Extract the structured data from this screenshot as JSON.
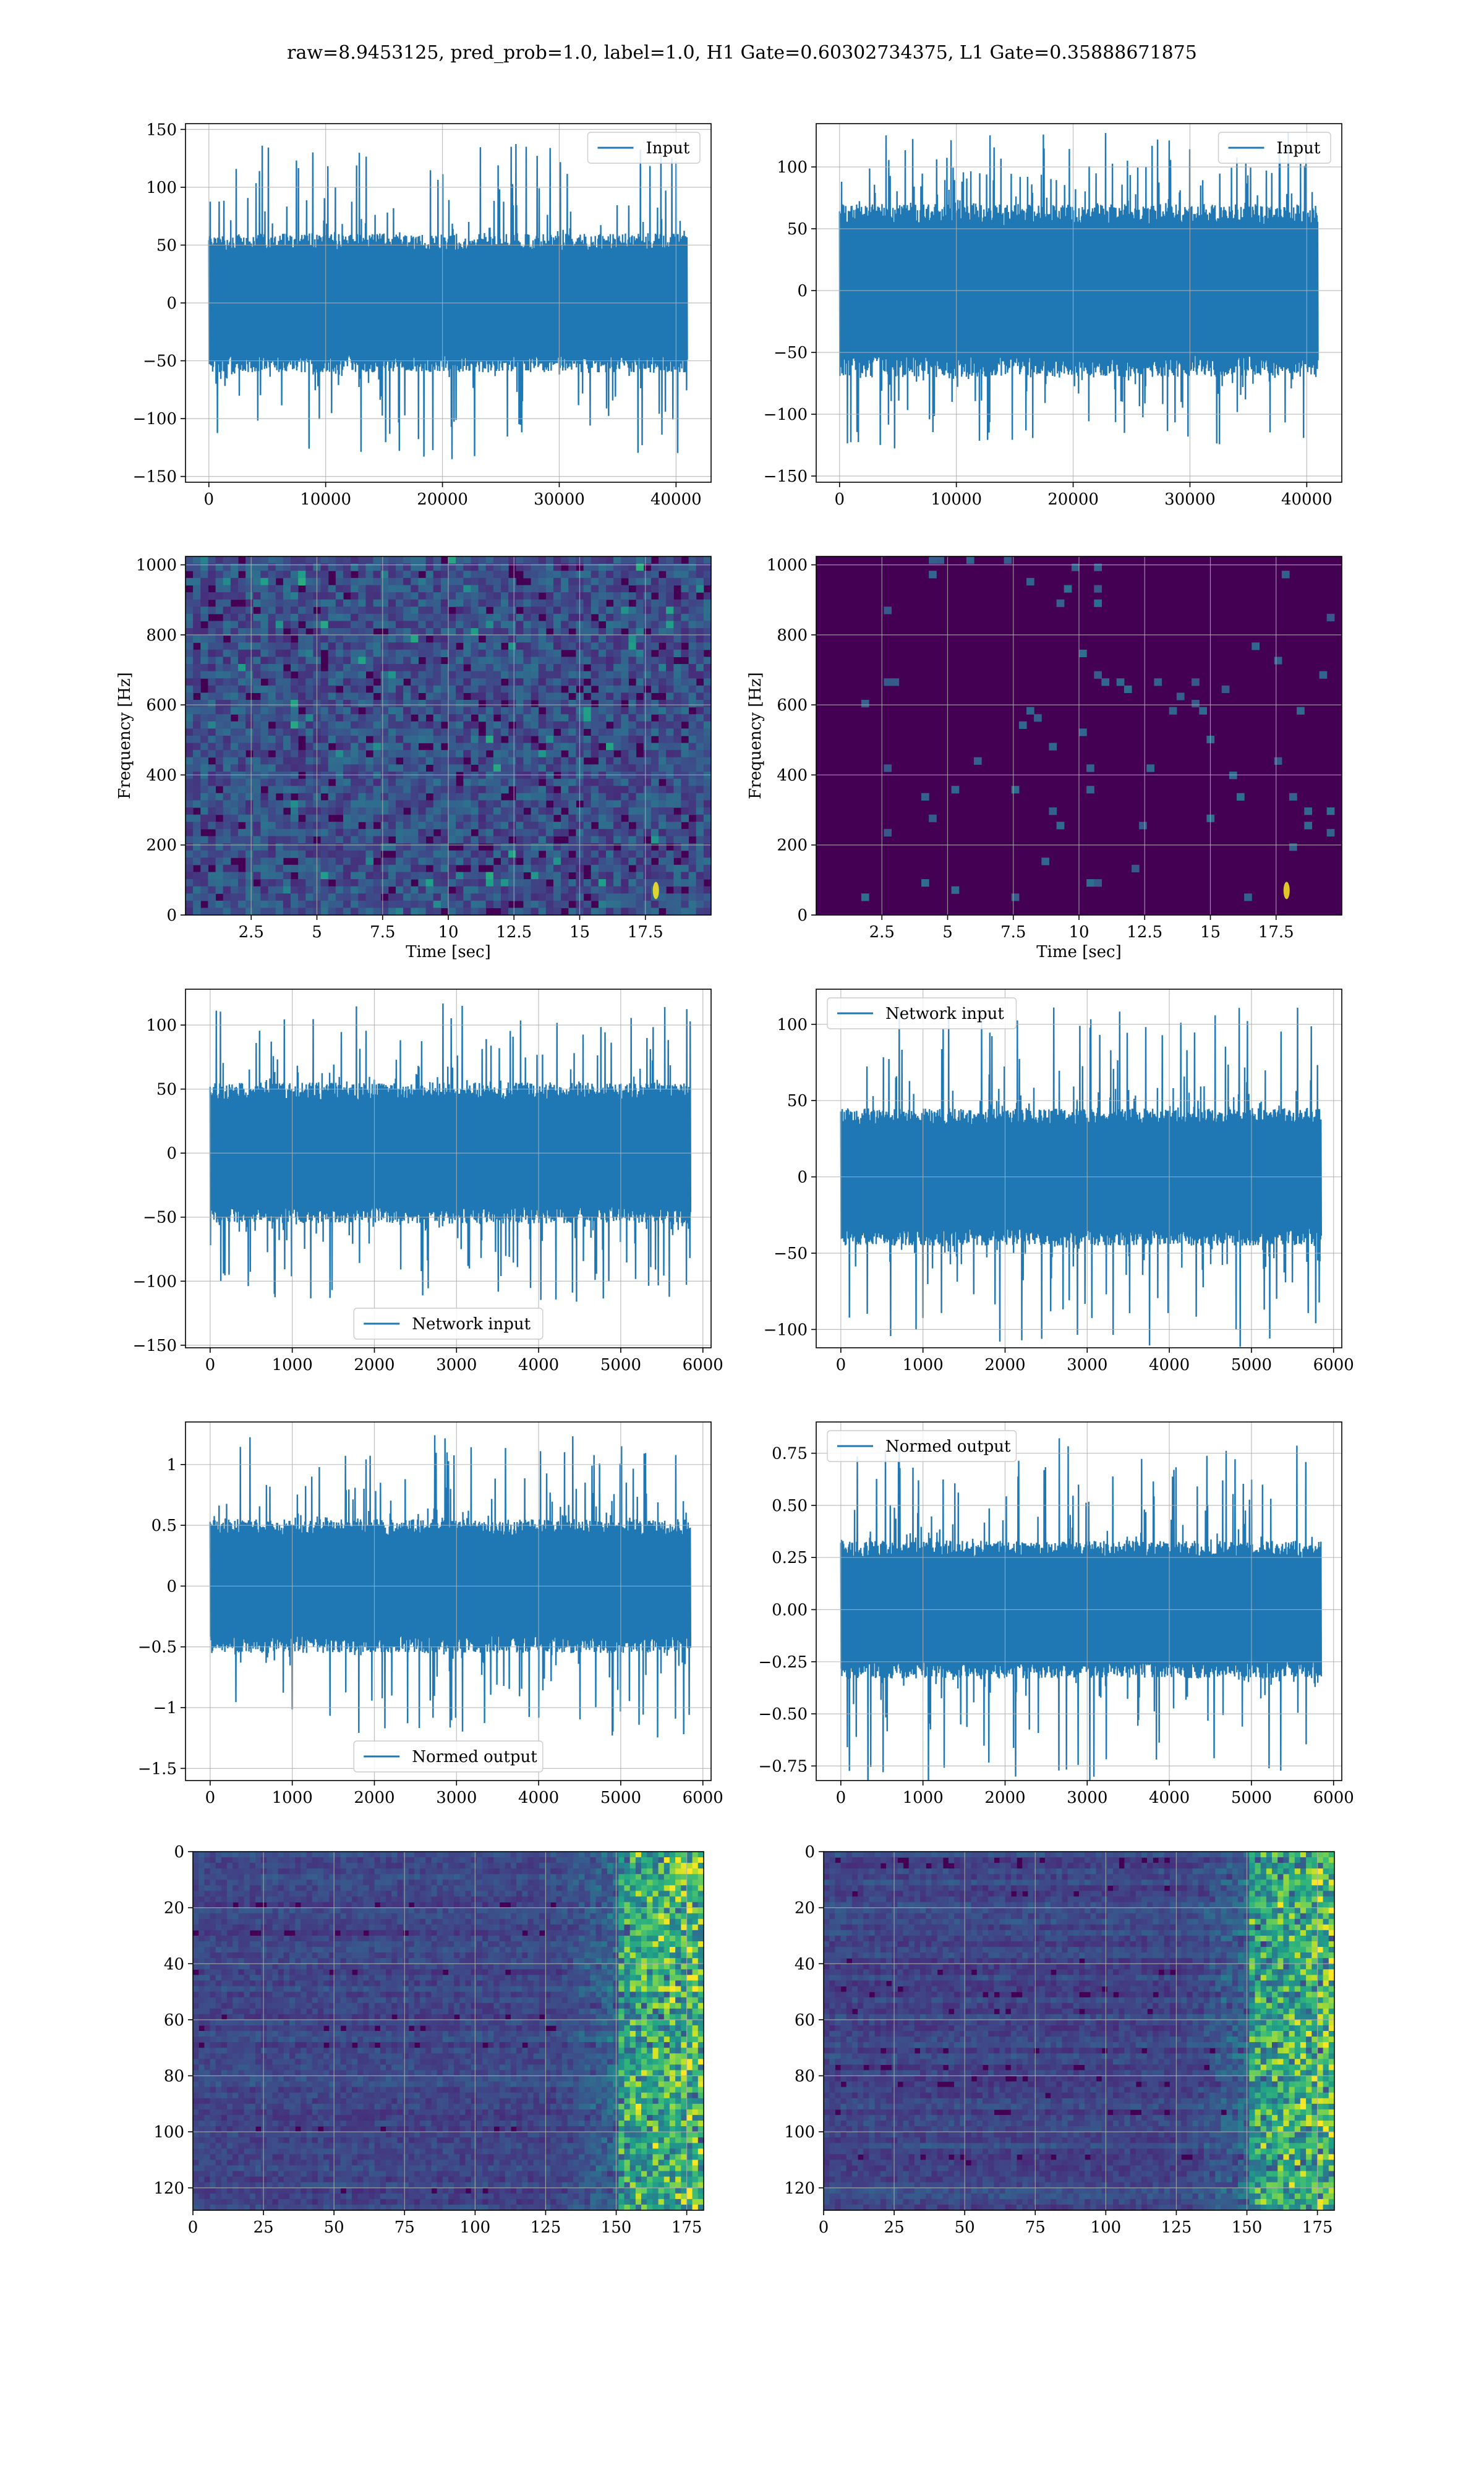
{
  "figure": {
    "title": "raw=8.9453125, pred_prob=1.0, label=1.0, H1 Gate=0.60302734375, L1 Gate=0.35888671875"
  },
  "colors": {
    "line": "#1f77b4",
    "viridis_dark": "#440154",
    "viridis_bright": "#fde725",
    "grid": "#b0b0b0"
  },
  "chart_data": [
    {
      "id": "h1-input",
      "type": "line",
      "series": [
        {
          "name": "Input"
        }
      ],
      "legend": "upper right",
      "xlim": [
        -2000,
        43000
      ],
      "ylim": [
        -155,
        155
      ],
      "xticks": [
        0,
        10000,
        20000,
        30000,
        40000
      ],
      "yticks": [
        -150,
        -100,
        -50,
        0,
        50,
        100,
        150
      ],
      "x_range": [
        0,
        40960
      ],
      "band": 60,
      "spike": 138
    },
    {
      "id": "l1-input",
      "type": "line",
      "series": [
        {
          "name": "Input"
        }
      ],
      "legend": "upper right",
      "xlim": [
        -2000,
        43000
      ],
      "ylim": [
        -155,
        135
      ],
      "xticks": [
        0,
        10000,
        20000,
        30000,
        40000
      ],
      "yticks": [
        -150,
        -100,
        -50,
        0,
        50,
        100
      ],
      "x_range": [
        0,
        40960
      ],
      "band": 70,
      "spike": 128
    },
    {
      "id": "h1-spectrogram",
      "type": "heatmap",
      "xlim": [
        0,
        20
      ],
      "ylim": [
        0,
        1024
      ],
      "xticks": [
        2.5,
        5.0,
        7.5,
        10.0,
        12.5,
        15.0,
        17.5
      ],
      "yticks": [
        0,
        200,
        400,
        600,
        800,
        1000
      ],
      "xlabel": "Time [sec]",
      "ylabel": "Frequency [Hz]",
      "intensity": 0.55
    },
    {
      "id": "l1-spectrogram",
      "type": "heatmap",
      "xlim": [
        0,
        20
      ],
      "ylim": [
        0,
        1024
      ],
      "xticks": [
        2.5,
        5.0,
        7.5,
        10.0,
        12.5,
        15.0,
        17.5
      ],
      "yticks": [
        0,
        200,
        400,
        600,
        800,
        1000
      ],
      "xlabel": "Time [sec]",
      "ylabel": "Frequency [Hz]",
      "intensity": 0.2
    },
    {
      "id": "h1-network-input",
      "type": "line",
      "series": [
        {
          "name": "Network input"
        }
      ],
      "legend": "lower center",
      "xlim": [
        -300,
        6100
      ],
      "ylim": [
        -152,
        128
      ],
      "xticks": [
        0,
        1000,
        2000,
        3000,
        4000,
        5000,
        6000
      ],
      "yticks": [
        -150,
        -100,
        -50,
        0,
        50,
        100
      ],
      "x_range": [
        0,
        5850
      ],
      "band": 55,
      "spike": 118
    },
    {
      "id": "l1-network-input",
      "type": "line",
      "series": [
        {
          "name": "Network input"
        }
      ],
      "legend": "upper left",
      "xlim": [
        -300,
        6100
      ],
      "ylim": [
        -112,
        123
      ],
      "xticks": [
        0,
        1000,
        2000,
        3000,
        4000,
        5000,
        6000
      ],
      "yticks": [
        -100,
        -50,
        0,
        50,
        100
      ],
      "x_range": [
        0,
        5850
      ],
      "band": 45,
      "spike": 112
    },
    {
      "id": "h1-normed-output",
      "type": "line",
      "series": [
        {
          "name": "Normed output"
        }
      ],
      "legend": "lower center",
      "xlim": [
        -300,
        6100
      ],
      "ylim": [
        -1.6,
        1.35
      ],
      "xticks": [
        0,
        1000,
        2000,
        3000,
        4000,
        5000,
        6000
      ],
      "yticks": [
        -1.5,
        -1.0,
        -0.5,
        0.0,
        0.5,
        1.0
      ],
      "x_range": [
        0,
        5850
      ],
      "band": 0.55,
      "spike": 1.25
    },
    {
      "id": "l1-normed-output",
      "type": "line",
      "series": [
        {
          "name": "Normed output"
        }
      ],
      "legend": "upper left",
      "xlim": [
        -300,
        6100
      ],
      "ylim": [
        -0.82,
        0.9
      ],
      "xticks": [
        0,
        1000,
        2000,
        3000,
        4000,
        5000,
        6000
      ],
      "yticks": [
        -0.75,
        -0.5,
        -0.25,
        0.0,
        0.25,
        0.5,
        0.75
      ],
      "ytick_labels": [
        "−0.75",
        "−0.50",
        "−0.25",
        "0.00",
        "0.25",
        "0.50",
        "0.75"
      ],
      "x_range": [
        0,
        5850
      ],
      "band": 0.33,
      "spike": 0.83
    },
    {
      "id": "h1-qtransform",
      "type": "heatmap",
      "xlim": [
        0,
        181
      ],
      "ylim": [
        128,
        0
      ],
      "xticks": [
        0,
        25,
        50,
        75,
        100,
        125,
        150,
        175
      ],
      "yticks": [
        0,
        20,
        40,
        60,
        80,
        100,
        120
      ],
      "intensity": 0.5
    },
    {
      "id": "l1-qtransform",
      "type": "heatmap",
      "xlim": [
        0,
        181
      ],
      "ylim": [
        128,
        0
      ],
      "xticks": [
        0,
        25,
        50,
        75,
        100,
        125,
        150,
        175
      ],
      "yticks": [
        0,
        20,
        40,
        60,
        80,
        100,
        120
      ],
      "intensity": 0.5
    }
  ]
}
